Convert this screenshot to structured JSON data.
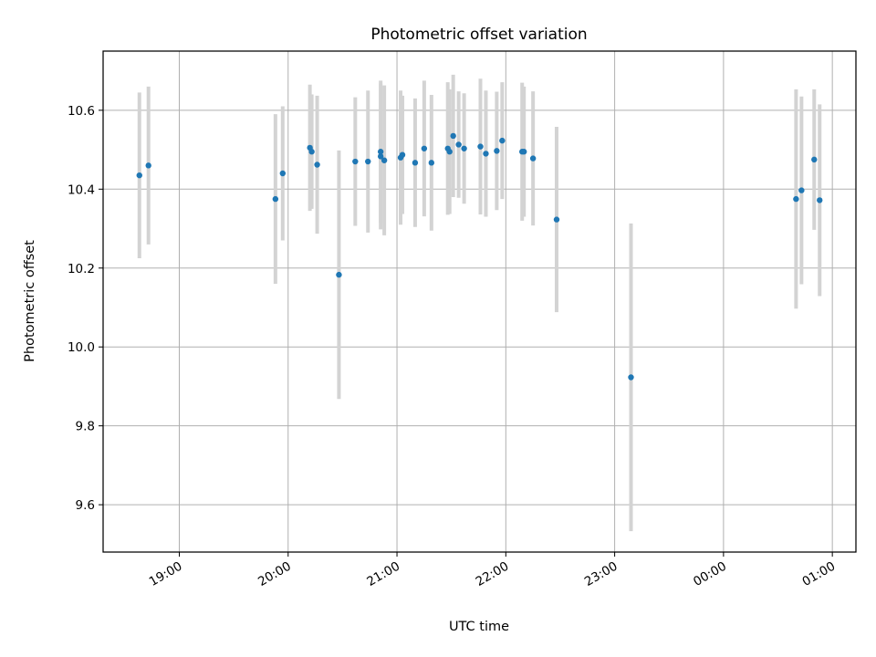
{
  "chart_data": {
    "type": "scatter",
    "title": "Photometric offset variation",
    "xlabel": "UTC time",
    "ylabel": "Photometric offset",
    "x_tick_labels": [
      "19:00",
      "20:00",
      "21:00",
      "22:00",
      "23:00",
      "00:00",
      "01:00"
    ],
    "x_ticks": [
      "19:00",
      "20:00",
      "21:00",
      "22:00",
      "23:00",
      "00:00",
      "01:00"
    ],
    "y_ticks": [
      9.6,
      9.8,
      10.0,
      10.2,
      10.4,
      10.6
    ],
    "xlim": [
      "18:18",
      "01:13"
    ],
    "ylim": [
      9.48,
      10.75
    ],
    "grid": true,
    "colors": {
      "points": "#1f77b4",
      "error_bars": "#d3d3d3",
      "grid": "#b0b0b0"
    },
    "points": [
      {
        "x": "18:38",
        "y": 10.435,
        "err": 0.21
      },
      {
        "x": "18:43",
        "y": 10.46,
        "err": 0.2
      },
      {
        "x": "19:53",
        "y": 10.375,
        "err": 0.215
      },
      {
        "x": "19:57",
        "y": 10.44,
        "err": 0.17
      },
      {
        "x": "20:12",
        "y": 10.505,
        "err": 0.16
      },
      {
        "x": "20:13",
        "y": 10.495,
        "err": 0.145
      },
      {
        "x": "20:16",
        "y": 10.462,
        "err": 0.175
      },
      {
        "x": "20:28",
        "y": 10.183,
        "err": 0.315
      },
      {
        "x": "20:37",
        "y": 10.47,
        "err": 0.163
      },
      {
        "x": "20:44",
        "y": 10.47,
        "err": 0.18
      },
      {
        "x": "20:51",
        "y": 10.483,
        "err": 0.185
      },
      {
        "x": "20:51",
        "y": 10.495,
        "err": 0.18
      },
      {
        "x": "20:53",
        "y": 10.473,
        "err": 0.19
      },
      {
        "x": "21:02",
        "y": 10.48,
        "err": 0.17
      },
      {
        "x": "21:03",
        "y": 10.487,
        "err": 0.15
      },
      {
        "x": "21:10",
        "y": 10.467,
        "err": 0.163
      },
      {
        "x": "21:15",
        "y": 10.503,
        "err": 0.172
      },
      {
        "x": "21:19",
        "y": 10.467,
        "err": 0.172
      },
      {
        "x": "21:28",
        "y": 10.503,
        "err": 0.168
      },
      {
        "x": "21:29",
        "y": 10.495,
        "err": 0.158
      },
      {
        "x": "21:31",
        "y": 10.535,
        "err": 0.155
      },
      {
        "x": "21:34",
        "y": 10.513,
        "err": 0.135
      },
      {
        "x": "21:37",
        "y": 10.503,
        "err": 0.14
      },
      {
        "x": "21:46",
        "y": 10.508,
        "err": 0.172
      },
      {
        "x": "21:49",
        "y": 10.49,
        "err": 0.16
      },
      {
        "x": "21:55",
        "y": 10.497,
        "err": 0.15
      },
      {
        "x": "21:58",
        "y": 10.523,
        "err": 0.148
      },
      {
        "x": "22:09",
        "y": 10.495,
        "err": 0.175
      },
      {
        "x": "22:10",
        "y": 10.495,
        "err": 0.165
      },
      {
        "x": "22:15",
        "y": 10.478,
        "err": 0.17
      },
      {
        "x": "22:28",
        "y": 10.323,
        "err": 0.235
      },
      {
        "x": "23:09",
        "y": 9.923,
        "err": 0.39
      },
      {
        "x": "00:40",
        "y": 10.375,
        "err": 0.278
      },
      {
        "x": "00:43",
        "y": 10.397,
        "err": 0.238
      },
      {
        "x": "00:50",
        "y": 10.475,
        "err": 0.178
      },
      {
        "x": "00:53",
        "y": 10.372,
        "err": 0.243
      }
    ]
  }
}
